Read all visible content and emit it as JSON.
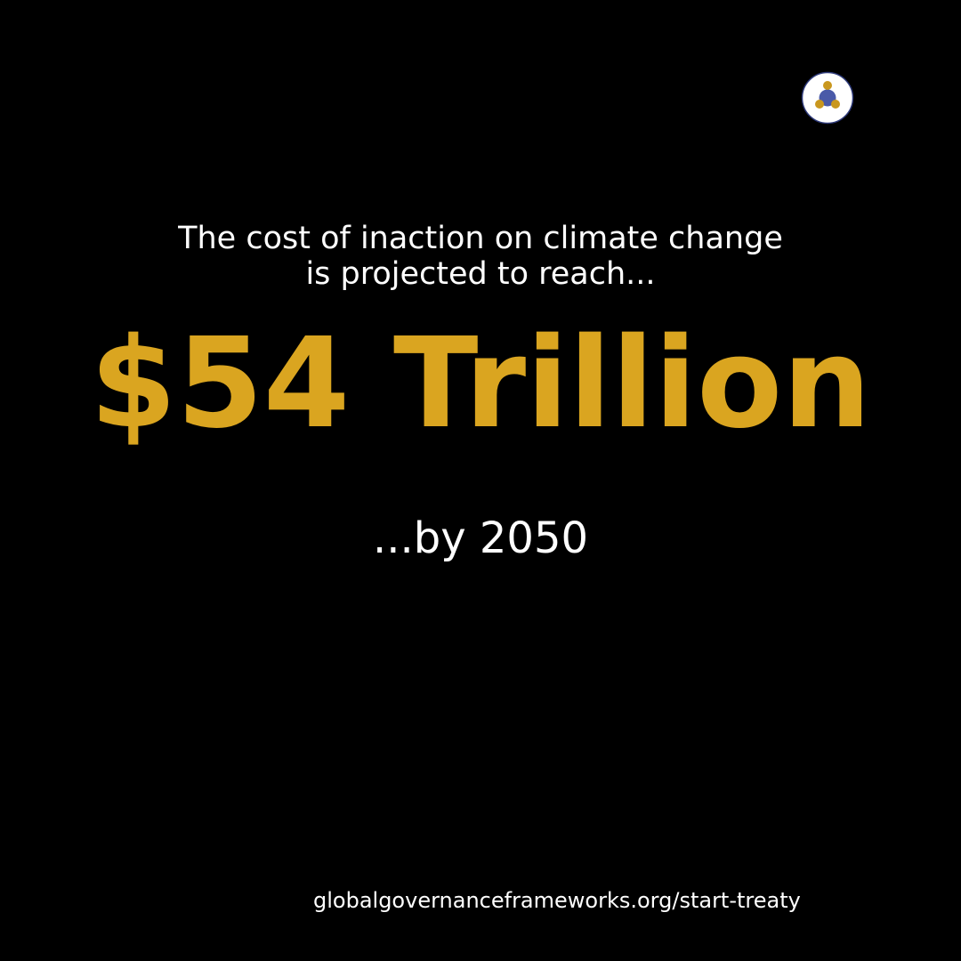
{
  "logo": {
    "icon": "people-network-logo-icon",
    "colors": {
      "ring": "#2E3A7A",
      "center": "#4A5AA8",
      "nodes": "#C9971E",
      "background": "#ffffff"
    }
  },
  "intro": {
    "line1": "The cost of inaction on climate change",
    "line2": "is projected to reach..."
  },
  "headline": "$54 Trillion",
  "by_year": "...by 2050",
  "footer": {
    "url": "globalgovernanceframeworks.org/start-treaty"
  },
  "colors": {
    "background": "#000000",
    "accent": "#DAA520",
    "text": "#ffffff"
  }
}
